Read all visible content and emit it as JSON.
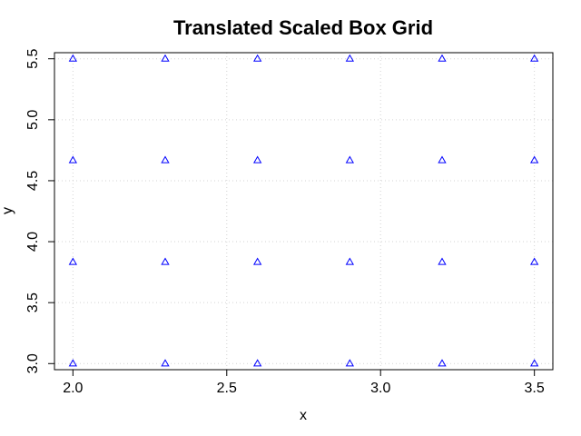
{
  "chart_data": {
    "type": "scatter",
    "title": "Translated Scaled Box Grid",
    "xlabel": "x",
    "ylabel": "y",
    "xlim": [
      1.94,
      3.56
    ],
    "ylim": [
      2.95,
      5.55
    ],
    "x_ticks": [
      2.0,
      2.5,
      3.0,
      3.5
    ],
    "x_tick_labels": [
      "2.0",
      "2.5",
      "3.0",
      "3.5"
    ],
    "y_ticks": [
      3.0,
      3.5,
      4.0,
      4.5,
      5.0,
      5.5
    ],
    "y_tick_labels": [
      "3.0",
      "3.5",
      "4.0",
      "4.5",
      "5.0",
      "5.5"
    ],
    "grid": true,
    "marker": "triangle-open",
    "point_color": "#0000ff",
    "grid_color": "#d3d3d3",
    "series": [
      {
        "x": [
          2.0,
          2.3,
          2.6,
          2.9,
          3.2,
          3.5,
          2.0,
          2.3,
          2.6,
          2.9,
          3.2,
          3.5,
          2.0,
          2.3,
          2.6,
          2.9,
          3.2,
          3.5,
          2.0,
          2.3,
          2.6,
          2.9,
          3.2,
          3.5
        ],
        "y": [
          3.0,
          3.0,
          3.0,
          3.0,
          3.0,
          3.0,
          3.833,
          3.833,
          3.833,
          3.833,
          3.833,
          3.833,
          4.667,
          4.667,
          4.667,
          4.667,
          4.667,
          4.667,
          5.5,
          5.5,
          5.5,
          5.5,
          5.5,
          5.5
        ]
      }
    ]
  }
}
